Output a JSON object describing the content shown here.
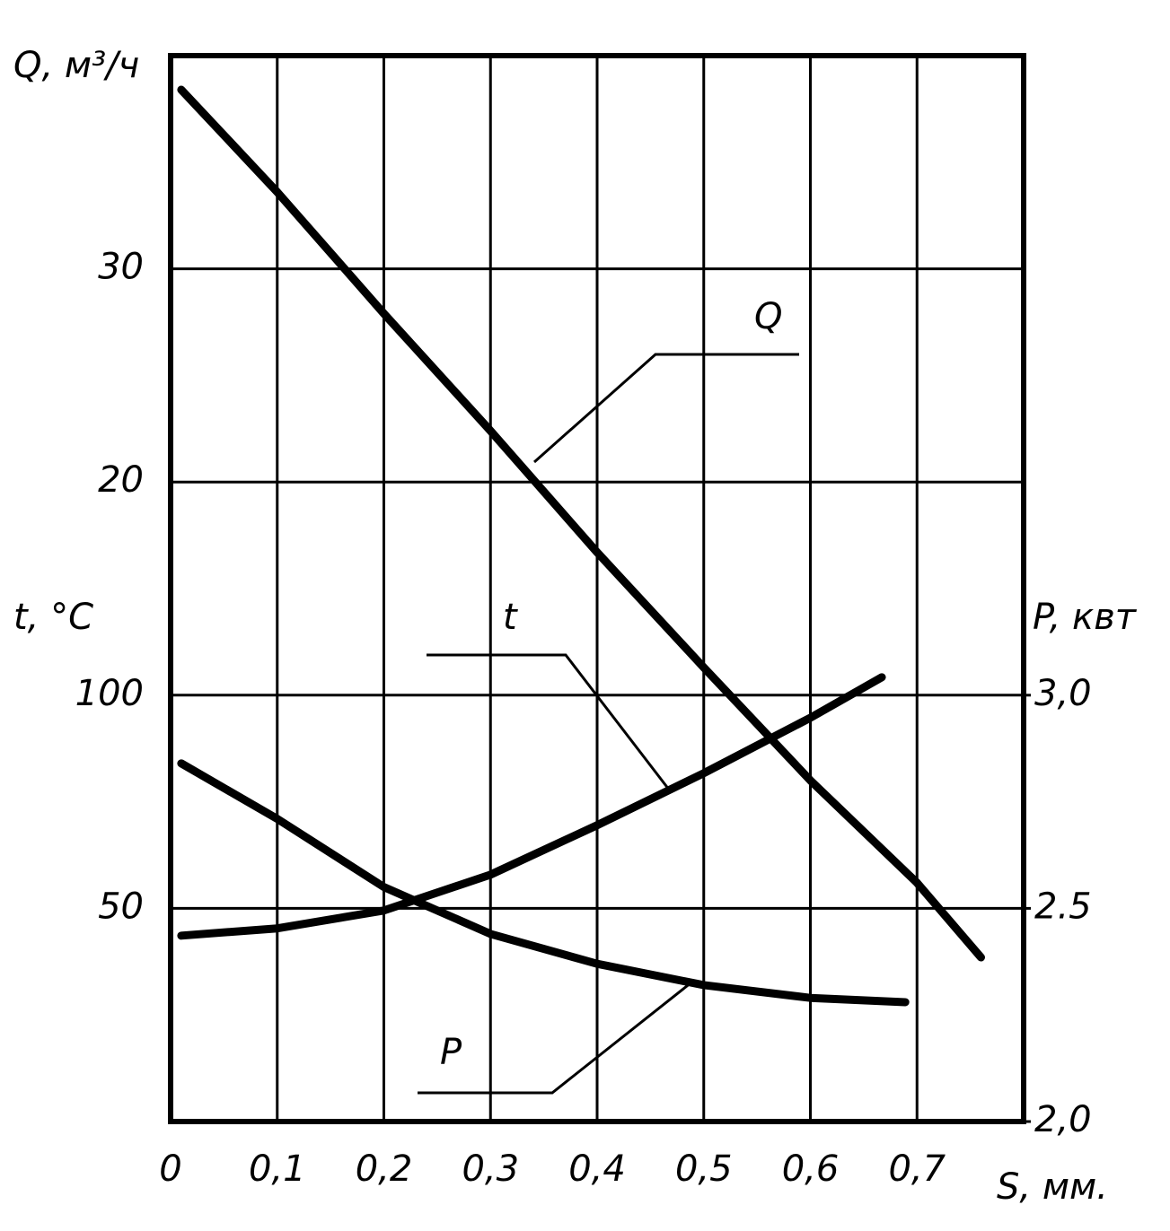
{
  "chart_data": {
    "type": "line",
    "x_label": "S, мм.",
    "y_label": "Q, м³/ч",
    "y2_label": "t, °C",
    "y3_label": "P, квт",
    "xlim": [
      0,
      0.8
    ],
    "xticks": [
      {
        "value": 0,
        "label": "0"
      },
      {
        "value": 0.1,
        "label": "0,1"
      },
      {
        "value": 0.2,
        "label": "0,2"
      },
      {
        "value": 0.3,
        "label": "0,3"
      },
      {
        "value": 0.4,
        "label": "0,4"
      },
      {
        "value": 0.5,
        "label": "0,5"
      },
      {
        "value": 0.6,
        "label": "0,6"
      },
      {
        "value": 0.7,
        "label": "0,7"
      }
    ],
    "ylim": [
      -10,
      40
    ],
    "yticks": [
      20,
      30
    ],
    "y2lim": [
      0,
      250
    ],
    "y2ticks": [
      50,
      100
    ],
    "y3lim": [
      2.0,
      4.5
    ],
    "y3ticks": [
      {
        "value": 2.0,
        "label": "2,0"
      },
      {
        "value": 2.5,
        "label": "2.5"
      },
      {
        "value": 3.0,
        "label": "3,0"
      }
    ],
    "grid": true,
    "series": [
      {
        "name": "Q",
        "color": "#000000",
        "axis": "y",
        "x": [
          0.01,
          0.1,
          0.2,
          0.3,
          0.4,
          0.5,
          0.6,
          0.7,
          0.76
        ],
        "values": [
          38.4,
          33.6,
          27.9,
          22.4,
          16.7,
          11.3,
          6.0,
          1.2,
          -2.3
        ]
      },
      {
        "name": "t",
        "color": "#000000",
        "axis": "y2",
        "x": [
          0.01,
          0.1,
          0.2,
          0.3,
          0.4,
          0.5,
          0.6,
          0.667
        ],
        "values": [
          43.6,
          45.3,
          49.5,
          57.9,
          69.5,
          81.7,
          94.7,
          104.2
        ]
      },
      {
        "name": "P",
        "color": "#000000",
        "axis": "y3",
        "x": [
          0.01,
          0.1,
          0.2,
          0.3,
          0.4,
          0.5,
          0.6,
          0.689
        ],
        "values": [
          2.84,
          2.71,
          2.55,
          2.44,
          2.37,
          2.32,
          2.29,
          2.28
        ]
      }
    ]
  }
}
